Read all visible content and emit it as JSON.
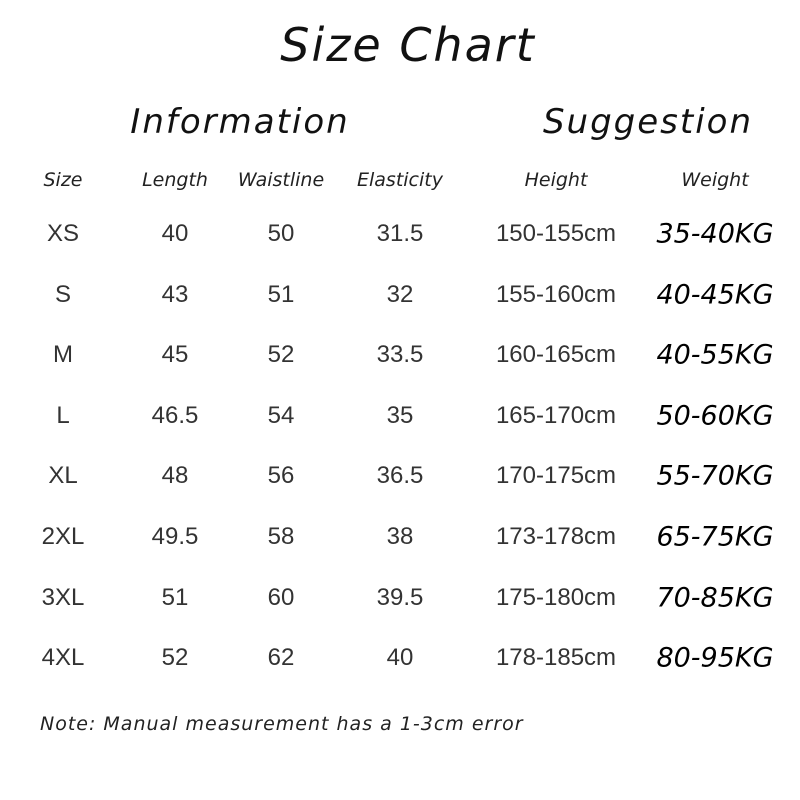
{
  "title": "Size Chart",
  "sections": {
    "information": "Information",
    "suggestion": "Suggestion"
  },
  "headers": [
    "Size",
    "Length",
    "Waistline",
    "Elasticity",
    "Height",
    "Weight"
  ],
  "rows": [
    [
      "XS",
      "40",
      "50",
      "31.5",
      "150-155cm",
      "35-40KG"
    ],
    [
      "S",
      "43",
      "51",
      "32",
      "155-160cm",
      "40-45KG"
    ],
    [
      "M",
      "45",
      "52",
      "33.5",
      "160-165cm",
      "40-55KG"
    ],
    [
      "L",
      "46.5",
      "54",
      "35",
      "165-170cm",
      "50-60KG"
    ],
    [
      "XL",
      "48",
      "56",
      "36.5",
      "170-175cm",
      "55-70KG"
    ],
    [
      "2XL",
      "49.5",
      "58",
      "38",
      "173-178cm",
      "65-75KG"
    ],
    [
      "3XL",
      "51",
      "60",
      "39.5",
      "175-180cm",
      "70-85KG"
    ],
    [
      "4XL",
      "52",
      "62",
      "40",
      "178-185cm",
      "80-95KG"
    ]
  ],
  "note": "Note: Manual measurement has a 1-3cm error"
}
